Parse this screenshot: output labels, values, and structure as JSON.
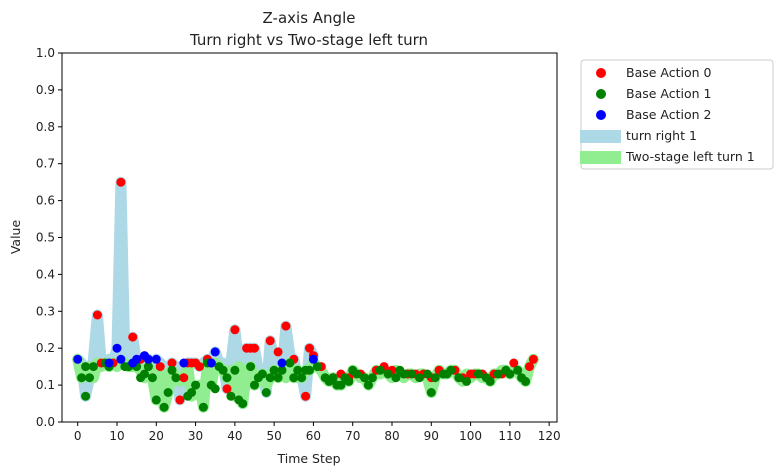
{
  "chart_data": {
    "type": "scatter",
    "title_line1": "Z-axis Angle",
    "title_line2": "Turn right vs Two-stage left turn",
    "xlabel": "Time Step",
    "ylabel": "Value",
    "xlim": [
      -4,
      122
    ],
    "ylim": [
      0,
      1.0
    ],
    "xticks": [
      0,
      10,
      20,
      30,
      40,
      50,
      60,
      70,
      80,
      90,
      100,
      110,
      120
    ],
    "yticks": [
      0.0,
      0.1,
      0.2,
      0.3,
      0.4,
      0.5,
      0.6,
      0.7,
      0.8,
      0.9,
      1.0
    ],
    "ytick_labels": [
      "0.0",
      "0.1",
      "0.2",
      "0.3",
      "0.4",
      "0.5",
      "0.6",
      "0.7",
      "0.8",
      "0.9",
      "1.0"
    ],
    "grid": false,
    "legend_position": "outside-right-top",
    "bands": [
      {
        "name": "turn right 1",
        "color": "#add8e6",
        "x": [
          0,
          1,
          2,
          3,
          4,
          5,
          6,
          7,
          8,
          9,
          10,
          11,
          12,
          13,
          14,
          15,
          16,
          17,
          18,
          19,
          20,
          21,
          22,
          23,
          24,
          25,
          26,
          27,
          28,
          29,
          30,
          31,
          32,
          33,
          34,
          35,
          36,
          37,
          38,
          39,
          40,
          41,
          42,
          43,
          44,
          45,
          46,
          47,
          48,
          49,
          50,
          51,
          52,
          53,
          54,
          55,
          56,
          57,
          58,
          59,
          60
        ],
        "y": [
          0.17,
          0.16,
          0.07,
          0.12,
          0.17,
          0.29,
          0.16,
          0.16,
          0.17,
          0.16,
          0.2,
          0.65,
          0.17,
          0.15,
          0.23,
          0.16,
          0.17,
          0.14,
          0.17,
          0.12,
          0.17,
          0.16,
          0.15,
          0.14,
          0.16,
          0.15,
          0.06,
          0.12,
          0.16,
          0.16,
          0.16,
          0.15,
          0.16,
          0.17,
          0.16,
          0.19,
          0.16,
          0.16,
          0.09,
          0.16,
          0.25,
          0.16,
          0.05,
          0.2,
          0.2,
          0.2,
          0.14,
          0.13,
          0.08,
          0.22,
          0.16,
          0.15,
          0.13,
          0.26,
          0.18,
          0.17,
          0.12,
          0.13,
          0.07,
          0.2,
          0.18
        ]
      },
      {
        "name": "Two-stage left turn 1",
        "color": "#90ee90",
        "x": [
          0,
          1,
          2,
          3,
          4,
          5,
          6,
          7,
          8,
          9,
          10,
          11,
          12,
          13,
          14,
          15,
          16,
          17,
          18,
          19,
          20,
          21,
          22,
          23,
          24,
          25,
          26,
          27,
          28,
          29,
          30,
          31,
          32,
          33,
          34,
          35,
          36,
          37,
          38,
          39,
          40,
          41,
          42,
          43,
          44,
          45,
          46,
          47,
          48,
          49,
          50,
          51,
          52,
          53,
          54,
          55,
          56,
          57,
          58,
          59,
          60,
          61,
          62,
          63,
          64,
          65,
          66,
          67,
          68,
          69,
          70,
          71,
          72,
          73,
          74,
          75,
          76,
          77,
          78,
          79,
          80,
          81,
          82,
          83,
          84,
          85,
          86,
          87,
          88,
          89,
          90,
          91,
          92,
          93,
          94,
          95,
          96,
          97,
          98,
          99,
          100,
          101,
          102,
          103,
          104,
          105,
          106,
          107,
          108,
          109,
          110,
          111,
          112,
          113,
          114,
          115,
          116
        ],
        "y": [
          0.17,
          0.12,
          0.14,
          0.15,
          0.12,
          0.16,
          0.15,
          0.16,
          0.15,
          0.16,
          0.15,
          0.16,
          0.16,
          0.15,
          0.15,
          0.15,
          0.14,
          0.12,
          0.15,
          0.12,
          0.06,
          0.14,
          0.04,
          0.08,
          0.14,
          0.12,
          0.11,
          0.12,
          0.15,
          0.07,
          0.08,
          0.1,
          0.04,
          0.16,
          0.1,
          0.16,
          0.15,
          0.14,
          0.12,
          0.14,
          0.07,
          0.15,
          0.05,
          0.14,
          0.15,
          0.1,
          0.12,
          0.13,
          0.1,
          0.12,
          0.14,
          0.12,
          0.14,
          0.12,
          0.16,
          0.12,
          0.14,
          0.12,
          0.14,
          0.14,
          0.16,
          0.15,
          0.14,
          0.12,
          0.11,
          0.12,
          0.1,
          0.1,
          0.12,
          0.11,
          0.14,
          0.13,
          0.12,
          0.12,
          0.1,
          0.12,
          0.14,
          0.13,
          0.14,
          0.13,
          0.12,
          0.14,
          0.13,
          0.12,
          0.13,
          0.13,
          0.12,
          0.13,
          0.13,
          0.12,
          0.08,
          0.12,
          0.14,
          0.13,
          0.13,
          0.14,
          0.14,
          0.12,
          0.11,
          0.13,
          0.12,
          0.13,
          0.13,
          0.12,
          0.12,
          0.11,
          0.13,
          0.13,
          0.14,
          0.14,
          0.13,
          0.14,
          0.14,
          0.12,
          0.11,
          0.15,
          0.17
        ]
      }
    ],
    "series": [
      {
        "name": "Base Action 0",
        "color": "#ff0000",
        "points": [
          [
            5,
            0.29
          ],
          [
            6,
            0.16
          ],
          [
            9,
            0.16
          ],
          [
            11,
            0.65
          ],
          [
            14,
            0.23
          ],
          [
            16,
            0.17
          ],
          [
            21,
            0.15
          ],
          [
            24,
            0.16
          ],
          [
            26,
            0.06
          ],
          [
            27,
            0.12
          ],
          [
            28,
            0.16
          ],
          [
            29,
            0.16
          ],
          [
            30,
            0.16
          ],
          [
            31,
            0.15
          ],
          [
            33,
            0.17
          ],
          [
            34,
            0.16
          ],
          [
            38,
            0.09
          ],
          [
            40,
            0.25
          ],
          [
            43,
            0.2
          ],
          [
            44,
            0.2
          ],
          [
            45,
            0.2
          ],
          [
            49,
            0.22
          ],
          [
            51,
            0.19
          ],
          [
            53,
            0.26
          ],
          [
            55,
            0.17
          ],
          [
            58,
            0.07
          ],
          [
            59,
            0.2
          ],
          [
            60,
            0.18
          ],
          [
            62,
            0.15
          ],
          [
            65,
            0.12
          ],
          [
            67,
            0.13
          ],
          [
            69,
            0.12
          ],
          [
            72,
            0.13
          ],
          [
            76,
            0.14
          ],
          [
            78,
            0.15
          ],
          [
            80,
            0.14
          ],
          [
            84,
            0.13
          ],
          [
            86,
            0.13
          ],
          [
            88,
            0.13
          ],
          [
            90,
            0.12
          ],
          [
            92,
            0.14
          ],
          [
            96,
            0.14
          ],
          [
            98,
            0.12
          ],
          [
            100,
            0.13
          ],
          [
            101,
            0.13
          ],
          [
            103,
            0.13
          ],
          [
            106,
            0.13
          ],
          [
            108,
            0.13
          ],
          [
            111,
            0.16
          ],
          [
            115,
            0.15
          ],
          [
            116,
            0.17
          ]
        ]
      },
      {
        "name": "Base Action 1",
        "color": "#008000",
        "points": [
          [
            1,
            0.12
          ],
          [
            2,
            0.07
          ],
          [
            2,
            0.15
          ],
          [
            3,
            0.12
          ],
          [
            4,
            0.15
          ],
          [
            7,
            0.16
          ],
          [
            8,
            0.15
          ],
          [
            12,
            0.15
          ],
          [
            13,
            0.15
          ],
          [
            15,
            0.15
          ],
          [
            16,
            0.12
          ],
          [
            17,
            0.13
          ],
          [
            18,
            0.15
          ],
          [
            19,
            0.12
          ],
          [
            20,
            0.06
          ],
          [
            22,
            0.04
          ],
          [
            23,
            0.08
          ],
          [
            24,
            0.14
          ],
          [
            25,
            0.12
          ],
          [
            28,
            0.07
          ],
          [
            29,
            0.08
          ],
          [
            30,
            0.1
          ],
          [
            32,
            0.04
          ],
          [
            33,
            0.16
          ],
          [
            34,
            0.1
          ],
          [
            35,
            0.09
          ],
          [
            36,
            0.15
          ],
          [
            37,
            0.14
          ],
          [
            38,
            0.12
          ],
          [
            39,
            0.07
          ],
          [
            40,
            0.14
          ],
          [
            41,
            0.06
          ],
          [
            42,
            0.05
          ],
          [
            44,
            0.15
          ],
          [
            45,
            0.1
          ],
          [
            46,
            0.12
          ],
          [
            47,
            0.13
          ],
          [
            48,
            0.08
          ],
          [
            49,
            0.12
          ],
          [
            50,
            0.14
          ],
          [
            51,
            0.12
          ],
          [
            52,
            0.14
          ],
          [
            54,
            0.16
          ],
          [
            55,
            0.12
          ],
          [
            56,
            0.14
          ],
          [
            57,
            0.12
          ],
          [
            58,
            0.14
          ],
          [
            59,
            0.14
          ],
          [
            61,
            0.15
          ],
          [
            63,
            0.12
          ],
          [
            64,
            0.11
          ],
          [
            65,
            0.12
          ],
          [
            66,
            0.1
          ],
          [
            67,
            0.1
          ],
          [
            68,
            0.12
          ],
          [
            69,
            0.11
          ],
          [
            70,
            0.14
          ],
          [
            71,
            0.13
          ],
          [
            73,
            0.12
          ],
          [
            74,
            0.1
          ],
          [
            75,
            0.12
          ],
          [
            77,
            0.14
          ],
          [
            79,
            0.13
          ],
          [
            81,
            0.12
          ],
          [
            82,
            0.14
          ],
          [
            83,
            0.13
          ],
          [
            85,
            0.13
          ],
          [
            87,
            0.12
          ],
          [
            89,
            0.13
          ],
          [
            90,
            0.08
          ],
          [
            91,
            0.12
          ],
          [
            93,
            0.13
          ],
          [
            94,
            0.13
          ],
          [
            95,
            0.14
          ],
          [
            97,
            0.12
          ],
          [
            99,
            0.11
          ],
          [
            102,
            0.13
          ],
          [
            104,
            0.12
          ],
          [
            105,
            0.11
          ],
          [
            107,
            0.13
          ],
          [
            109,
            0.14
          ],
          [
            110,
            0.13
          ],
          [
            112,
            0.14
          ],
          [
            113,
            0.12
          ],
          [
            114,
            0.11
          ]
        ]
      },
      {
        "name": "Base Action 2",
        "color": "#0000ff",
        "points": [
          [
            0,
            0.17
          ],
          [
            8,
            0.16
          ],
          [
            10,
            0.2
          ],
          [
            11,
            0.17
          ],
          [
            14,
            0.16
          ],
          [
            15,
            0.17
          ],
          [
            17,
            0.18
          ],
          [
            18,
            0.17
          ],
          [
            20,
            0.17
          ],
          [
            27,
            0.16
          ],
          [
            35,
            0.19
          ],
          [
            34,
            0.16
          ],
          [
            52,
            0.16
          ],
          [
            60,
            0.17
          ]
        ]
      }
    ]
  }
}
